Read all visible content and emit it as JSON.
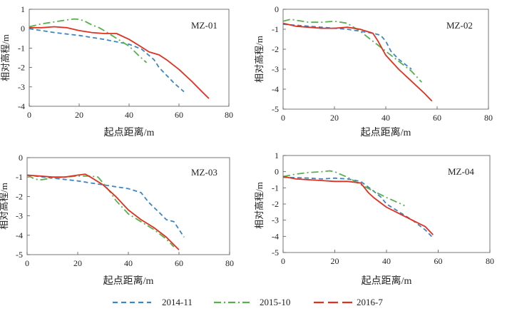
{
  "colors": {
    "s2014": "#3b86c6",
    "s2015": "#56b04c",
    "s2016": "#e03020"
  },
  "legend": [
    {
      "label": "2014-11",
      "style": "dash"
    },
    {
      "label": "2015-10",
      "style": "dashdot"
    },
    {
      "label": "2016-7",
      "style": "longdash"
    }
  ],
  "chart_data": [
    {
      "type": "line",
      "title": "MZ-01",
      "xlabel": "起点距离/m",
      "ylabel": "相对高程/m",
      "xlim": [
        0,
        80
      ],
      "ylim": [
        -4,
        1
      ],
      "xticks": [
        "0",
        "20",
        "40",
        "60",
        "80"
      ],
      "yticks": [
        "1",
        "0",
        "-1",
        "-2",
        "-3",
        "-4"
      ],
      "series": [
        {
          "name": "2014-11",
          "x": [
            0,
            10,
            20,
            30,
            40,
            45,
            50,
            52,
            55,
            58,
            62
          ],
          "y": [
            0,
            -0.2,
            -0.35,
            -0.55,
            -0.8,
            -1.05,
            -1.6,
            -2.0,
            -2.4,
            -2.8,
            -3.25
          ]
        },
        {
          "name": "2015-10",
          "x": [
            0,
            5,
            10,
            15,
            18,
            20,
            22,
            25,
            28,
            30,
            35,
            40,
            44,
            47
          ],
          "y": [
            0.1,
            0.25,
            0.35,
            0.45,
            0.5,
            0.48,
            0.4,
            0.2,
            0.05,
            -0.1,
            -0.5,
            -0.9,
            -1.4,
            -1.75
          ]
        },
        {
          "name": "2016-7",
          "x": [
            0,
            5,
            10,
            15,
            20,
            25,
            30,
            35,
            40,
            45,
            48,
            52,
            55,
            60,
            65,
            70,
            72
          ],
          "y": [
            0.05,
            0.05,
            0.1,
            0.05,
            -0.1,
            -0.2,
            -0.25,
            -0.25,
            -0.55,
            -0.95,
            -1.2,
            -1.35,
            -1.6,
            -2.1,
            -2.7,
            -3.35,
            -3.6
          ]
        }
      ]
    },
    {
      "type": "line",
      "title": "MZ-02",
      "xlabel": "起点距离/m",
      "ylabel": "相对高程/m",
      "xlim": [
        0,
        80
      ],
      "ylim": [
        -5,
        0
      ],
      "xticks": [
        "0",
        "20",
        "40",
        "60",
        "80"
      ],
      "yticks": [
        "0",
        "-1",
        "-2",
        "-3",
        "-4",
        "-5"
      ],
      "series": [
        {
          "name": "2014-11",
          "x": [
            0,
            5,
            10,
            15,
            20,
            25,
            30,
            35,
            38,
            40,
            42,
            45,
            48,
            50
          ],
          "y": [
            -0.75,
            -0.8,
            -0.85,
            -0.9,
            -0.95,
            -1.0,
            -1.1,
            -1.2,
            -1.3,
            -1.6,
            -2.1,
            -2.5,
            -2.8,
            -3.0
          ]
        },
        {
          "name": "2015-10",
          "x": [
            0,
            3,
            5,
            10,
            15,
            20,
            25,
            30,
            35,
            40,
            45,
            50,
            54
          ],
          "y": [
            -0.6,
            -0.5,
            -0.55,
            -0.65,
            -0.65,
            -0.6,
            -0.7,
            -1.1,
            -1.6,
            -2.1,
            -2.6,
            -3.1,
            -3.65
          ]
        },
        {
          "name": "2016-7",
          "x": [
            0,
            5,
            10,
            15,
            20,
            25,
            30,
            35,
            37,
            40,
            45,
            50,
            55,
            58
          ],
          "y": [
            -0.7,
            -0.85,
            -0.9,
            -0.95,
            -0.95,
            -0.9,
            -1.0,
            -1.2,
            -1.6,
            -2.3,
            -3.0,
            -3.6,
            -4.2,
            -4.6
          ]
        }
      ]
    },
    {
      "type": "line",
      "title": "MZ-03",
      "xlabel": "起点距离/m",
      "ylabel": "相对高程/m",
      "xlim": [
        0,
        80
      ],
      "ylim": [
        -5,
        0
      ],
      "xticks": [
        "0",
        "20",
        "40",
        "60",
        "80"
      ],
      "yticks": [
        "0",
        "-1",
        "-2",
        "-3",
        "-4",
        "-5"
      ],
      "series": [
        {
          "name": "2014-11",
          "x": [
            0,
            10,
            20,
            25,
            30,
            35,
            40,
            45,
            48,
            52,
            55,
            58,
            62
          ],
          "y": [
            -0.9,
            -1.05,
            -1.2,
            -1.3,
            -1.4,
            -1.5,
            -1.6,
            -1.8,
            -2.3,
            -2.8,
            -3.2,
            -3.3,
            -4.1
          ]
        },
        {
          "name": "2015-10",
          "x": [
            0,
            3,
            5,
            10,
            15,
            20,
            25,
            28,
            30,
            33,
            35,
            40,
            45,
            50,
            55,
            58
          ],
          "y": [
            -0.9,
            -1.1,
            -1.15,
            -1.05,
            -1.0,
            -0.95,
            -0.95,
            -1.0,
            -1.3,
            -1.8,
            -2.2,
            -2.9,
            -3.3,
            -3.7,
            -4.2,
            -4.6
          ]
        },
        {
          "name": "2016-7",
          "x": [
            0,
            5,
            10,
            15,
            20,
            23,
            25,
            30,
            35,
            40,
            45,
            50,
            55,
            60
          ],
          "y": [
            -0.9,
            -0.95,
            -1.0,
            -1.0,
            -0.9,
            -0.85,
            -1.0,
            -1.4,
            -2.0,
            -2.7,
            -3.2,
            -3.6,
            -4.1,
            -4.75
          ]
        }
      ]
    },
    {
      "type": "line",
      "title": "MZ-04",
      "xlabel": "起点距离/m",
      "ylabel": "相对高程/m",
      "xlim": [
        0,
        80
      ],
      "ylim": [
        -5,
        1
      ],
      "xticks": [
        "0",
        "20",
        "40",
        "60",
        "80"
      ],
      "yticks": [
        "1",
        "0",
        "-1",
        "-2",
        "-3",
        "-4",
        "-5"
      ],
      "series": [
        {
          "name": "2014-11",
          "x": [
            0,
            10,
            15,
            20,
            25,
            30,
            35,
            38,
            40,
            45,
            50,
            55,
            58
          ],
          "y": [
            -0.35,
            -0.4,
            -0.45,
            -0.4,
            -0.45,
            -0.6,
            -1.2,
            -1.6,
            -2.0,
            -2.5,
            -3.0,
            -3.6,
            -4.1
          ]
        },
        {
          "name": "2015-10",
          "x": [
            0,
            5,
            10,
            15,
            18,
            20,
            22,
            25,
            30,
            35,
            40,
            45,
            47
          ],
          "y": [
            -0.3,
            -0.15,
            -0.05,
            0.0,
            0.05,
            0.0,
            -0.15,
            -0.35,
            -0.8,
            -1.2,
            -1.6,
            -1.95,
            -2.1
          ]
        },
        {
          "name": "2016-7",
          "x": [
            0,
            5,
            10,
            15,
            20,
            25,
            30,
            33,
            35,
            40,
            45,
            50,
            55,
            58
          ],
          "y": [
            -0.3,
            -0.45,
            -0.5,
            -0.55,
            -0.6,
            -0.6,
            -0.7,
            -1.3,
            -1.6,
            -2.2,
            -2.6,
            -3.0,
            -3.4,
            -3.9
          ]
        }
      ]
    }
  ]
}
